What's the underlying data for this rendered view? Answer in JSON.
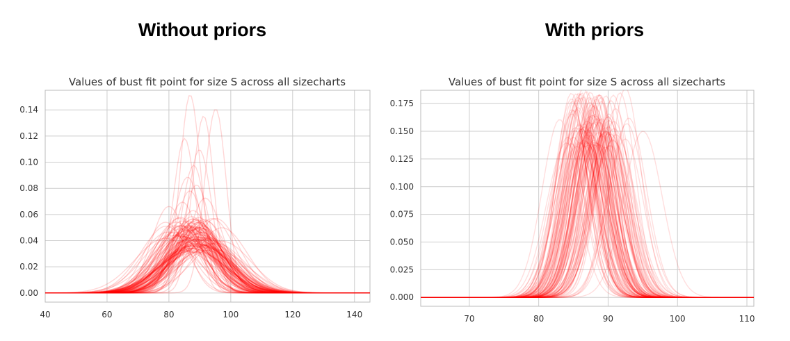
{
  "headings": {
    "left": "Without priors",
    "right": "With priors"
  },
  "colors": {
    "curve": "#ff0000",
    "grid": "#cccccc",
    "frame": "#bbbbbb"
  },
  "chart_data": [
    {
      "type": "line",
      "title": "Values of bust fit point for size S across all sizecharts",
      "xlim": [
        40,
        145
      ],
      "ylim": [
        -0.007,
        0.155
      ],
      "xticks": [
        40,
        60,
        80,
        100,
        120,
        140
      ],
      "yticks": [
        0.0,
        0.02,
        0.04,
        0.06,
        0.08,
        0.1,
        0.12,
        0.14
      ],
      "ytick_labels": [
        "0.00",
        "0.02",
        "0.04",
        "0.06",
        "0.08",
        "0.10",
        "0.12",
        "0.14"
      ],
      "grid": true,
      "series_style": "many semi-transparent red gaussian-like density curves",
      "series_count": 120,
      "summary": {
        "mean_range": [
          78,
          98
        ],
        "peak_range": [
          0.03,
          0.15
        ],
        "typical_peak": 0.045,
        "max_peak": 0.149,
        "max_peak_x": 87
      },
      "series": [
        {
          "mean": 87,
          "peak": 0.149
        },
        {
          "mean": 95,
          "peak": 0.141
        },
        {
          "mean": 91,
          "peak": 0.135
        },
        {
          "mean": 85,
          "peak": 0.117
        },
        {
          "mean": 90,
          "peak": 0.112
        },
        {
          "mean": 88,
          "peak": 0.098
        },
        {
          "mean": 86,
          "peak": 0.09
        },
        {
          "mean": 89,
          "peak": 0.083
        },
        {
          "mean": 87,
          "peak": 0.076
        },
        {
          "mean": 92,
          "peak": 0.072
        },
        {
          "mean": 84,
          "peak": 0.069
        },
        {
          "mean": 80,
          "peak": 0.066
        },
        {
          "mean": 88,
          "peak": 0.063
        },
        {
          "mean": 94,
          "peak": 0.057
        },
        {
          "mean": 82,
          "peak": 0.056
        },
        {
          "mean": 90,
          "peak": 0.053
        },
        {
          "mean": 86,
          "peak": 0.051
        },
        {
          "mean": 97,
          "peak": 0.05
        }
      ]
    },
    {
      "type": "line",
      "title": "Values of bust fit point for size S across all sizecharts",
      "xlim": [
        63,
        111
      ],
      "ylim": [
        -0.008,
        0.187
      ],
      "xticks": [
        70,
        80,
        90,
        100,
        110
      ],
      "yticks": [
        0.0,
        0.025,
        0.05,
        0.075,
        0.1,
        0.125,
        0.15,
        0.175
      ],
      "ytick_labels": [
        "0.000",
        "0.025",
        "0.050",
        "0.075",
        "0.100",
        "0.125",
        "0.150",
        "0.175"
      ],
      "grid": true,
      "series_style": "many semi-transparent red gaussian-like density curves",
      "series_count": 120,
      "summary": {
        "mean_range": [
          82,
          95
        ],
        "peak_range": [
          0.135,
          0.185
        ],
        "typical_peak": 0.16
      },
      "series": [
        {
          "mean": 86.5,
          "peak": 0.184
        },
        {
          "mean": 91.8,
          "peak": 0.184
        },
        {
          "mean": 89,
          "peak": 0.18
        },
        {
          "mean": 88,
          "peak": 0.175
        },
        {
          "mean": 85,
          "peak": 0.168
        },
        {
          "mean": 90,
          "peak": 0.165
        },
        {
          "mean": 87,
          "peak": 0.162
        },
        {
          "mean": 93,
          "peak": 0.16
        },
        {
          "mean": 83,
          "peak": 0.158
        },
        {
          "mean": 89,
          "peak": 0.155
        },
        {
          "mean": 95,
          "peak": 0.15
        },
        {
          "mean": 84,
          "peak": 0.145
        }
      ]
    }
  ]
}
